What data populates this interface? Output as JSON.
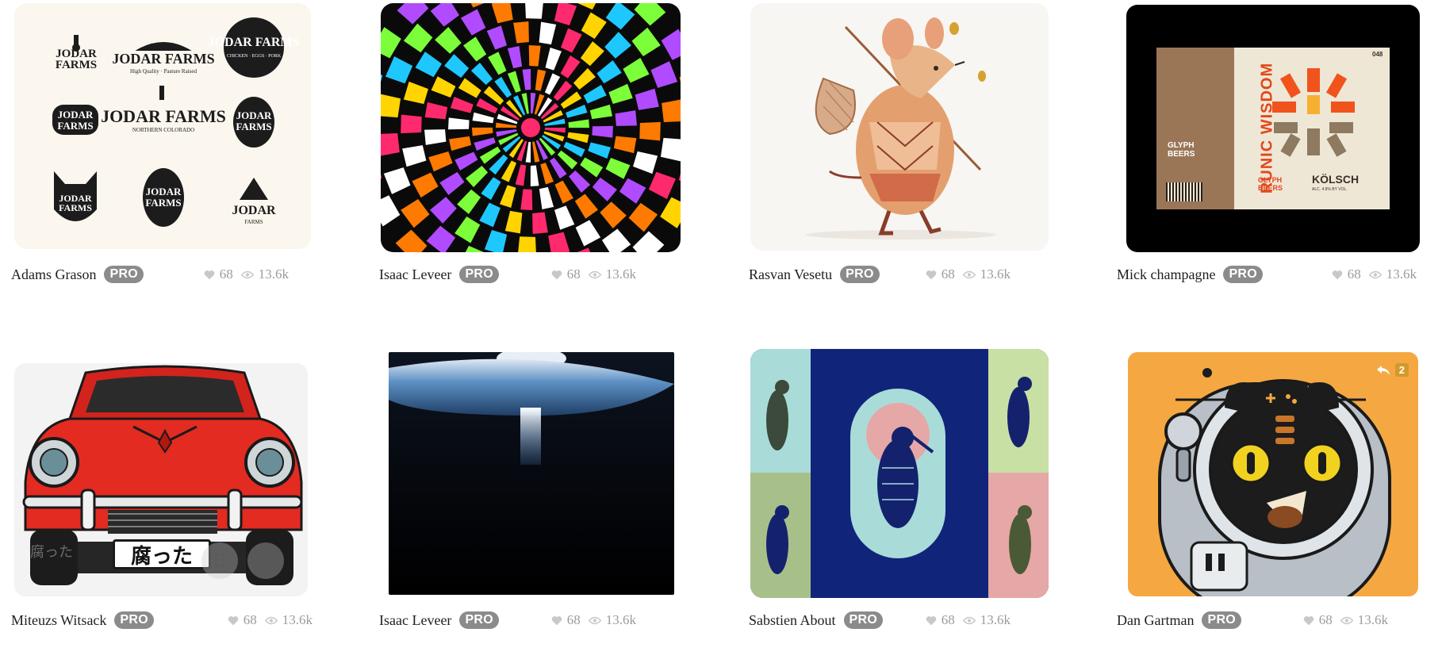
{
  "cards": [
    {
      "author": "Adams Grason",
      "badge": "PRO",
      "likes": "68",
      "views": "13.6k",
      "thumb": "farm-logos-grid"
    },
    {
      "author": "Isaac Leveer",
      "badge": "PRO",
      "likes": "68",
      "views": "13.6k",
      "thumb": "psychedelic-mandala"
    },
    {
      "author": "Rasvan Vesetu",
      "badge": "PRO",
      "likes": "68",
      "views": "13.6k",
      "thumb": "mouse-traveler-illustration"
    },
    {
      "author": "Mick champagne",
      "badge": "PRO",
      "likes": "68",
      "views": "13.6k",
      "thumb": "beer-label",
      "label": {
        "brand": "GLYPH BEERS",
        "title": "RUNIC WISDOM",
        "style": "KÖLSCH",
        "abv": "ALC. 4.8% BY VOL.",
        "number": "048"
      }
    },
    {
      "author": "Miteuzs Witsack",
      "badge": "PRO",
      "likes": "68",
      "views": "13.6k",
      "thumb": "red-car",
      "plate": "腐った",
      "ghost_text": "腐った"
    },
    {
      "author": "Isaac Leveer",
      "badge": "PRO",
      "likes": "68",
      "views": "13.6k",
      "thumb": "ufo-beam"
    },
    {
      "author": "Sabstien About",
      "badge": "PRO",
      "likes": "68",
      "views": "13.6k",
      "thumb": "woodpecker-panels"
    },
    {
      "author": "Dan Gartman",
      "badge": "PRO",
      "likes": "68",
      "views": "13.6k",
      "thumb": "astronaut-cat",
      "reply_count": "2"
    }
  ],
  "farm_logo": {
    "line1": "JODAR",
    "line2": "FARMS",
    "full": "JODAR FARMS"
  },
  "colors": {
    "pro_badge": "#8b8b8b",
    "stats": "#9c9c9c",
    "author": "#1e1e1e"
  },
  "icons": {
    "like": "heart-icon",
    "views": "eye-icon",
    "save": "bookmark-icon",
    "reply": "reply-icon"
  }
}
